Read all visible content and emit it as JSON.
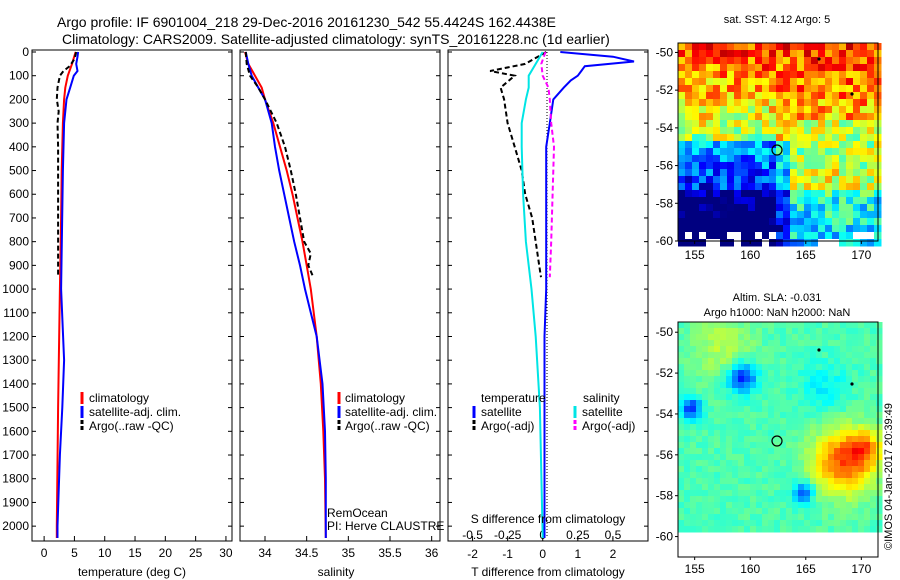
{
  "header": {
    "line1": "Argo profile: IF 6901004_218 29-Dec-2016 20161230_542 55.4424S 162.4438E",
    "line2": "Climatology: CARS2009. Satellite-adjusted climatology: synTS_20161228.nc (1d earlier)"
  },
  "credit": "©IMOS 04-Jan-2017 20:39:49",
  "remocean": {
    "line1": "RemOcean",
    "line2": "PI: Herve CLAUSTRE"
  },
  "colors": {
    "climatology": "#ff0000",
    "satellite": "#0000ff",
    "argo": "#000000",
    "salinity_satellite": "#00e5e5",
    "salinity_argo": "#ff00ff"
  },
  "chart_data": [
    {
      "type": "line",
      "id": "temperature",
      "xlabel": "temperature (deg C)",
      "xlim": [
        -2,
        31
      ],
      "ylim": [
        2050,
        0
      ],
      "xticks": [
        0,
        5,
        10,
        15,
        20,
        25,
        30
      ],
      "yticks": [
        0,
        100,
        200,
        300,
        400,
        500,
        600,
        700,
        800,
        900,
        1000,
        1100,
        1200,
        1300,
        1400,
        1500,
        1600,
        1700,
        1800,
        1900,
        2000
      ],
      "legend": [
        "climatology",
        "satellite-adj. clim.",
        "Argo(..raw -QC)"
      ],
      "series": [
        {
          "name": "climatology",
          "style": "solid",
          "depth": [
            0,
            50,
            100,
            150,
            200,
            300,
            400,
            500,
            700,
            1000,
            1500,
            2000,
            2050
          ],
          "values": [
            5.2,
            4.6,
            3.9,
            3.5,
            3.3,
            3.1,
            3.0,
            2.9,
            2.8,
            2.6,
            2.3,
            2.1,
            2.1
          ]
        },
        {
          "name": "satellite-adj. clim.",
          "style": "solid",
          "depth": [
            0,
            20,
            50,
            80,
            100,
            150,
            200,
            300,
            500,
            1000,
            1300,
            1500,
            1700,
            2000,
            2050
          ],
          "values": [
            5.6,
            5.5,
            5.3,
            5.5,
            4.9,
            4.3,
            3.7,
            3.3,
            3.1,
            2.8,
            3.3,
            3.0,
            2.6,
            2.2,
            2.2
          ]
        },
        {
          "name": "Argo(..raw -QC)",
          "style": "dashed",
          "depth": [
            0,
            30,
            60,
            80,
            100,
            150,
            200,
            250,
            300,
            400,
            500,
            600,
            700,
            800,
            900,
            950
          ],
          "values": [
            5.3,
            5.0,
            4.2,
            3.2,
            2.6,
            2.2,
            2.1,
            2.4,
            2.2,
            2.3,
            2.3,
            2.3,
            2.3,
            2.3,
            2.3,
            2.3
          ]
        }
      ]
    },
    {
      "type": "line",
      "id": "salinity",
      "xlabel": "salinity",
      "xlim": [
        33.7,
        36.1
      ],
      "ylim": [
        2050,
        0
      ],
      "xticks": [
        34,
        34.5,
        35,
        35.5,
        36
      ],
      "legend": [
        "climatology",
        "satellite-adj. clim.",
        "Argo(..raw -QC)"
      ],
      "series": [
        {
          "name": "climatology",
          "style": "solid",
          "depth": [
            0,
            50,
            100,
            150,
            200,
            300,
            400,
            500,
            600,
            700,
            800,
            900,
            1000,
            1200,
            1400,
            1600,
            1800,
            2050
          ],
          "values": [
            33.76,
            33.8,
            33.88,
            33.96,
            34.0,
            34.1,
            34.18,
            34.26,
            34.33,
            34.39,
            34.45,
            34.5,
            34.55,
            34.62,
            34.67,
            34.7,
            34.72,
            34.73
          ]
        },
        {
          "name": "satellite-adj. clim.",
          "style": "solid",
          "depth": [
            0,
            50,
            100,
            150,
            200,
            300,
            400,
            500,
            600,
            700,
            800,
            900,
            1000,
            1100,
            1200,
            1400,
            1600,
            1800,
            2050
          ],
          "values": [
            33.77,
            33.8,
            33.84,
            33.92,
            34.0,
            34.08,
            34.12,
            34.17,
            34.23,
            34.29,
            34.35,
            34.42,
            34.48,
            34.55,
            34.62,
            34.69,
            34.72,
            34.73,
            34.73
          ]
        },
        {
          "name": "Argo(..raw -QC)",
          "style": "dashed",
          "depth": [
            0,
            50,
            100,
            150,
            200,
            300,
            400,
            500,
            600,
            700,
            800,
            850,
            900,
            950
          ],
          "values": [
            33.77,
            33.78,
            33.82,
            33.92,
            34.0,
            34.14,
            34.24,
            34.31,
            34.37,
            34.42,
            34.47,
            34.55,
            34.52,
            34.58
          ]
        }
      ]
    },
    {
      "type": "line",
      "id": "differences",
      "xlabel": "T difference from climatology",
      "xlabel2": "S difference from climatology",
      "xlim": [
        -2.7,
        3.0
      ],
      "ylim": [
        2050,
        0
      ],
      "xticks_t": [
        -2,
        -1,
        0,
        1,
        2
      ],
      "xticks_s": [
        -0.5,
        -0.25,
        0,
        0.25,
        0.5
      ],
      "legend": {
        "temperature_heading": "temperature",
        "salinity_heading": "salinity",
        "t_sat": "satellite",
        "t_argo": "Argo(-adj)",
        "s_sat": "satellite",
        "s_argo": "Argo(-adj)"
      },
      "series": [
        {
          "name": "T satellite",
          "style": "solid",
          "color": "#0000ff",
          "depth": [
            0,
            20,
            40,
            60,
            80,
            100,
            120,
            150,
            200,
            300,
            400,
            600,
            800,
            1000,
            1200,
            1500,
            2050
          ],
          "values": [
            0.5,
            2.0,
            2.6,
            1.2,
            1.1,
            1.0,
            0.8,
            0.6,
            0.3,
            0.2,
            0.1,
            0.1,
            0.1,
            0.1,
            0.05,
            0.05,
            0.05
          ]
        },
        {
          "name": "T Argo(-adj)",
          "style": "dashed",
          "color": "#000000",
          "depth": [
            0,
            50,
            80,
            100,
            150,
            200,
            300,
            400,
            500,
            600,
            700,
            800,
            900,
            950
          ],
          "values": [
            0.1,
            -0.5,
            -1.5,
            -0.8,
            -1.2,
            -1.1,
            -1.0,
            -0.8,
            -0.6,
            -0.5,
            -0.3,
            -0.2,
            -0.1,
            -0.05
          ]
        },
        {
          "name": "S satellite",
          "style": "solid",
          "color": "#00e5e5",
          "depth": [
            0,
            50,
            100,
            150,
            200,
            300,
            400,
            600,
            800,
            1000,
            1200,
            1500,
            2050
          ],
          "values": [
            0.0,
            -0.05,
            -0.1,
            -0.1,
            -0.12,
            -0.15,
            -0.15,
            -0.14,
            -0.12,
            -0.08,
            -0.05,
            -0.02,
            0.0
          ]
        },
        {
          "name": "S Argo(-adj)",
          "style": "dashed",
          "color": "#ff00ff",
          "depth": [
            0,
            50,
            100,
            150,
            200,
            300,
            400,
            600,
            800,
            950
          ],
          "values": [
            0.02,
            -0.01,
            0.0,
            0.04,
            0.05,
            0.06,
            0.08,
            0.07,
            0.06,
            0.05
          ]
        }
      ]
    },
    {
      "type": "heatmap",
      "id": "sst_map",
      "title": "sat. SST: 4.12 Argo: 5",
      "xlim": [
        153.5,
        171.5
      ],
      "ylim": [
        -60,
        -49.5
      ],
      "xticks": [
        155,
        160,
        165,
        170
      ],
      "yticks": [
        -50,
        -52,
        -54,
        -56,
        -58,
        -60
      ]
    },
    {
      "type": "heatmap",
      "id": "sla_map",
      "title_line1": "Altim. SLA: -0.031",
      "title_line2": "Argo h1000: NaN h2000: NaN",
      "xlim": [
        153.5,
        171.5
      ],
      "ylim": [
        -61,
        -49.5
      ],
      "xticks": [
        155,
        160,
        165,
        170
      ],
      "yticks": [
        -50,
        -52,
        -54,
        -56,
        -58,
        -60
      ]
    }
  ]
}
